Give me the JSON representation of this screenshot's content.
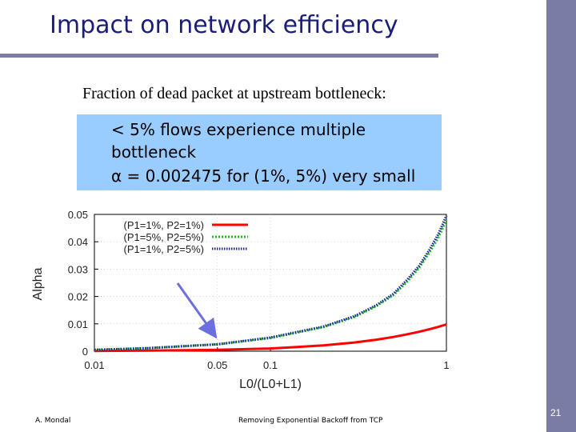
{
  "slide": {
    "title": "Impact on network efficiency",
    "subtitle": "Fraction of dead packet at upstream bottleneck:",
    "callout": [
      "<  5% flows experience multiple",
      "bottleneck",
      "α = 0.002475 for (1%, 5%) very small"
    ],
    "footer_author": "A. Mondal",
    "footer_title": "Removing Exponential Backoff from TCP",
    "page_number": "21"
  },
  "colors": {
    "accent_bar": "#7a7ca6",
    "title_text": "#1a1d7a",
    "callout_bg": "#99ccff",
    "arrow": "#6b6fe0"
  },
  "chart_data": {
    "type": "line",
    "xlabel": "L0/(L0+L1)",
    "ylabel": "Alpha",
    "x_scale": "log",
    "xlim": [
      0.01,
      1
    ],
    "ylim": [
      0,
      0.05
    ],
    "xticks": [
      "0.01",
      "0.05",
      "0.1",
      "1"
    ],
    "yticks": [
      "0",
      "0.01",
      "0.02",
      "0.03",
      "0.04",
      "0.05"
    ],
    "legend_position": "top-left",
    "x": [
      0.01,
      0.02,
      0.05,
      0.1,
      0.2,
      0.3,
      0.4,
      0.5,
      0.6,
      0.7,
      0.8,
      0.9,
      1.0
    ],
    "series": [
      {
        "name": "(P1=1%, P2=1%)",
        "color": "#ff0000",
        "style": "solid",
        "values": [
          0.0001,
          0.0002,
          0.0005,
          0.001,
          0.0021,
          0.0032,
          0.0042,
          0.0052,
          0.0062,
          0.0071,
          0.008,
          0.0089,
          0.0098
        ]
      },
      {
        "name": "(P1=5%, P2=5%)",
        "color": "#22bb22",
        "style": "dotted",
        "values": [
          0.0005,
          0.0011,
          0.0025,
          0.0048,
          0.0088,
          0.0125,
          0.0165,
          0.0205,
          0.0255,
          0.0305,
          0.036,
          0.0415,
          0.048
        ]
      },
      {
        "name": "(P1=1%, P2=5%)",
        "color": "#1a2a99",
        "style": "dotted",
        "values": [
          0.0005,
          0.0011,
          0.0025,
          0.005,
          0.009,
          0.0128,
          0.0168,
          0.021,
          0.0262,
          0.0312,
          0.037,
          0.0428,
          0.0495
        ]
      }
    ],
    "annotation": {
      "type": "arrow",
      "points_to_x": 0.05,
      "points_to_y": 0.0025
    }
  }
}
